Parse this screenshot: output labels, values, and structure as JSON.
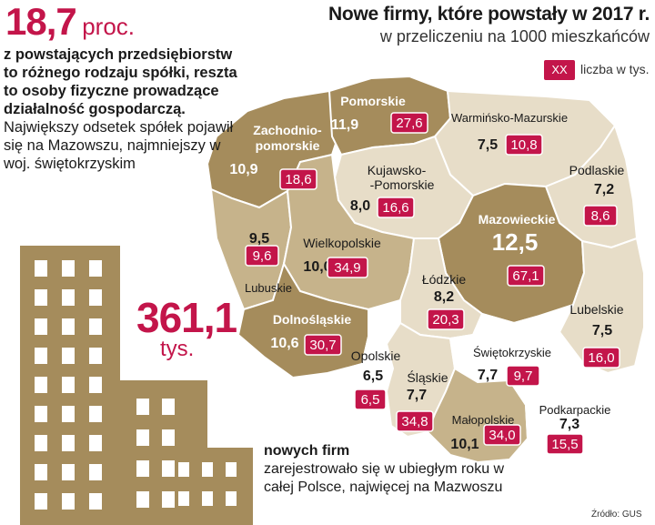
{
  "header": {
    "title": "Nowe firmy, które powstały w 2017 r.",
    "subtitle": "w przeliczeniu na 1000 mieszkańców"
  },
  "legend": {
    "box": "XX",
    "label": "liczba w tys."
  },
  "stat1": {
    "value": "18,7",
    "unit": "proc.",
    "bold_text": "z powstających przedsiębiorstw to różnego rodzaju spółki, reszta to osoby fizyczne prowadzące działalność gospodarczą.",
    "normal_text": "Największy odsetek spółek pojawił się na Mazowszu, najmniejszy w woj. świętokrzyskim"
  },
  "stat2": {
    "value": "361,1",
    "unit": "tys.",
    "bold_text": "nowych firm",
    "normal_text": "zarejestrowało się w ubiegłym roku w całej Polsce, najwięcej na Mazwoszu"
  },
  "source": "Źródło: GUS",
  "colors": {
    "accent": "#c3154a",
    "dark": "#a58c5c",
    "mid": "#c6b38b",
    "light": "#e7ddc8",
    "border": "#ffffff"
  },
  "regions": [
    {
      "name": "Zachodnio-pomorskie",
      "name_lines": [
        "Zachodnio-",
        "pomorskie"
      ],
      "rate": "10,9",
      "count": "18,6",
      "shade": "dark"
    },
    {
      "name": "Pomorskie",
      "name_lines": [
        "Pomorskie"
      ],
      "rate": "11,9",
      "count": "27,6",
      "shade": "dark"
    },
    {
      "name": "Warmińsko-Mazurskie",
      "name_lines": [
        "Warmińsko-Mazurskie"
      ],
      "rate": "7,5",
      "count": "10,8",
      "shade": "light"
    },
    {
      "name": "Kujawsko-Pomorskie",
      "name_lines": [
        "Kujawsko-",
        "-Pomorskie"
      ],
      "rate": "8,0",
      "count": "16,6",
      "shade": "light"
    },
    {
      "name": "Podlaskie",
      "name_lines": [
        "Podlaskie"
      ],
      "rate": "7,2",
      "count": "8,6",
      "shade": "light"
    },
    {
      "name": "Lubuskie",
      "name_lines": [
        "Lubuskie"
      ],
      "rate": "9,5",
      "count": "9,6",
      "shade": "mid"
    },
    {
      "name": "Wielkopolskie",
      "name_lines": [
        "Wielkopolskie"
      ],
      "rate": "10,0",
      "count": "34,9",
      "shade": "mid"
    },
    {
      "name": "Mazowieckie",
      "name_lines": [
        "Mazowieckie"
      ],
      "rate": "12,5",
      "count": "67,1",
      "shade": "dark"
    },
    {
      "name": "Łódzkie",
      "name_lines": [
        "Łódzkie"
      ],
      "rate": "8,2",
      "count": "20,3",
      "shade": "light"
    },
    {
      "name": "Dolnośląskie",
      "name_lines": [
        "Dolnośląskie"
      ],
      "rate": "10,6",
      "count": "30,7",
      "shade": "dark"
    },
    {
      "name": "Lubelskie",
      "name_lines": [
        "Lubelskie"
      ],
      "rate": "7,5",
      "count": "16,0",
      "shade": "light"
    },
    {
      "name": "Opolskie",
      "name_lines": [
        "Opolskie"
      ],
      "rate": "6,5",
      "count": "6,5",
      "shade": "white"
    },
    {
      "name": "Śląskie",
      "name_lines": [
        "Śląskie"
      ],
      "rate": "7,7",
      "count": "34,8",
      "shade": "light"
    },
    {
      "name": "Świętokrzyskie",
      "name_lines": [
        "Świętokrzyskie"
      ],
      "rate": "7,7",
      "count": "9,7",
      "shade": "white"
    },
    {
      "name": "Małopolskie",
      "name_lines": [
        "Małopolskie"
      ],
      "rate": "10,1",
      "count": "34,0",
      "shade": "mid"
    },
    {
      "name": "Podkarpackie",
      "name_lines": [
        "Podkarpackie"
      ],
      "rate": "7,3",
      "count": "15,5",
      "shade": "white"
    }
  ]
}
